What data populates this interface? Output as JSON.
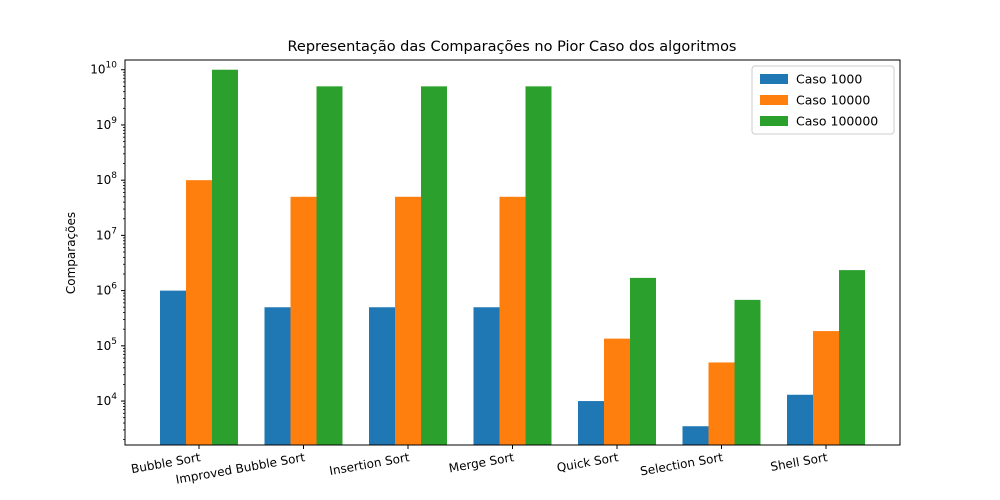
{
  "chart_data": {
    "type": "bar",
    "title": "Representação das Comparações no Pior Caso dos algoritmos",
    "xlabel": "",
    "ylabel": "Comparações",
    "yscale": "log",
    "ylim": [
      1600,
      15000000000
    ],
    "yticks": [
      {
        "value": 10000,
        "base": "10",
        "exp": "4"
      },
      {
        "value": 100000,
        "base": "10",
        "exp": "5"
      },
      {
        "value": 1000000,
        "base": "10",
        "exp": "6"
      },
      {
        "value": 10000000,
        "base": "10",
        "exp": "7"
      },
      {
        "value": 100000000,
        "base": "10",
        "exp": "8"
      },
      {
        "value": 1000000000,
        "base": "10",
        "exp": "9"
      },
      {
        "value": 10000000000,
        "base": "10",
        "exp": "10"
      }
    ],
    "categories": [
      "Bubble Sort",
      "Improved Bubble Sort",
      "Insertion Sort",
      "Merge Sort",
      "Quick Sort",
      "Selection Sort",
      "Shell Sort"
    ],
    "series": [
      {
        "name": "Caso 1000",
        "color": "#1f77b4",
        "values": [
          999000,
          499500,
          499500,
          499500,
          10000,
          3500,
          13000
        ]
      },
      {
        "name": "Caso 10000",
        "color": "#ff7f0e",
        "values": [
          99990000,
          49995000,
          49995000,
          49995000,
          135000,
          50000,
          185000
        ]
      },
      {
        "name": "Caso 100000",
        "color": "#2ca02c",
        "values": [
          9999900000,
          4999950000,
          4999950000,
          4999950000,
          1700000,
          680000,
          2350000
        ]
      }
    ],
    "legend_position": "top-right",
    "grid": false
  }
}
